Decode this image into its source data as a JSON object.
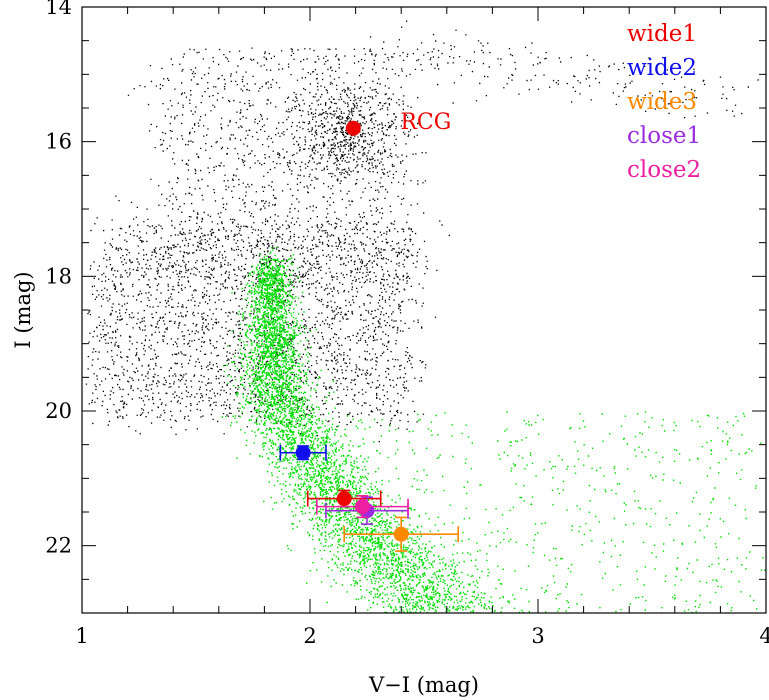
{
  "chart_data": {
    "type": "scatter",
    "title": "",
    "xlabel": "V−I (mag)",
    "ylabel": "I (mag)",
    "xlim": [
      1,
      4
    ],
    "ylim": [
      23,
      14
    ],
    "y_inverted": true,
    "x_ticks": [
      "1",
      "2",
      "3",
      "4"
    ],
    "y_ticks": [
      "14",
      "16",
      "18",
      "20",
      "22"
    ],
    "annotations": [
      {
        "text": "RCG",
        "x": 2.19,
        "y": 15.8,
        "color": "#ee0000"
      }
    ],
    "legend": {
      "placement": "top-right",
      "entries": [
        {
          "name": "wide1",
          "color": "#ee0000"
        },
        {
          "name": "wide2",
          "color": "#1010ee"
        },
        {
          "name": "wide3",
          "color": "#ff8800"
        },
        {
          "name": "close1",
          "color": "#9b2be0"
        },
        {
          "name": "close2",
          "color": "#ee1fa0"
        }
      ]
    },
    "series": [
      {
        "name": "RCG",
        "color": "#ee0000",
        "points": [
          {
            "x": 2.19,
            "y": 15.8,
            "xerr": 0,
            "yerr": 0
          }
        ]
      },
      {
        "name": "wide1",
        "color": "#ee0000",
        "points": [
          {
            "x": 2.15,
            "y": 21.3,
            "xerr": 0.16,
            "yerr": 0.12
          }
        ]
      },
      {
        "name": "wide2",
        "color": "#1010ee",
        "points": [
          {
            "x": 1.97,
            "y": 20.62,
            "xerr": 0.1,
            "yerr": 0.1
          }
        ]
      },
      {
        "name": "wide3",
        "color": "#ff8800",
        "points": [
          {
            "x": 2.4,
            "y": 21.83,
            "xerr": 0.25,
            "yerr": 0.25
          }
        ]
      },
      {
        "name": "close1",
        "color": "#9b2be0",
        "points": [
          {
            "x": 2.25,
            "y": 21.48,
            "xerr": 0.18,
            "yerr": 0.2
          }
        ]
      },
      {
        "name": "close2",
        "color": "#ee1fa0",
        "points": [
          {
            "x": 2.23,
            "y": 21.42,
            "xerr": 0.2,
            "yerr": 0.16
          }
        ]
      }
    ],
    "background_populations": [
      {
        "name": "field stars",
        "color": "#000000",
        "style": "dots"
      },
      {
        "name": "bulge stars",
        "color": "#00dd00",
        "style": "dots"
      }
    ]
  }
}
